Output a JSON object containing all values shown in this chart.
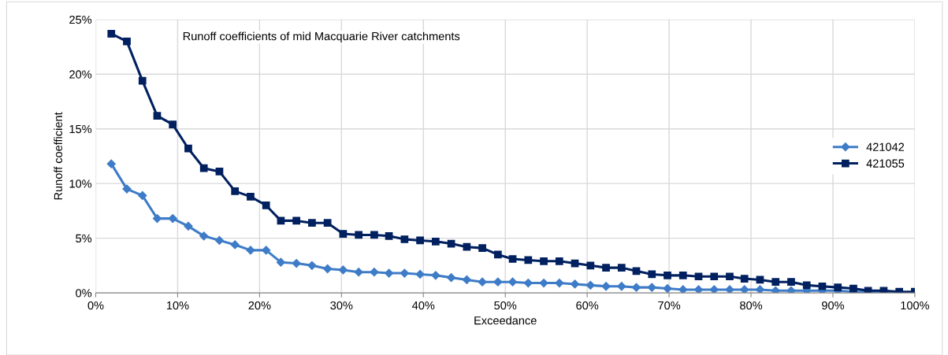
{
  "chart_data": {
    "type": "line",
    "title": "Runoff coefficients of mid Macquarie River catchments",
    "xlabel": "Exceedance",
    "ylabel": "Runoff coefficient",
    "x": [
      1.9,
      3.8,
      5.7,
      7.5,
      9.4,
      11.3,
      13.2,
      15.1,
      17.0,
      18.9,
      20.8,
      22.6,
      24.5,
      26.4,
      28.3,
      30.2,
      32.1,
      34.0,
      35.8,
      37.7,
      39.6,
      41.5,
      43.4,
      45.3,
      47.2,
      49.1,
      50.9,
      52.8,
      54.7,
      56.6,
      58.5,
      60.4,
      62.3,
      64.2,
      66.0,
      67.9,
      69.8,
      71.7,
      73.6,
      75.5,
      77.4,
      79.2,
      81.1,
      83.0,
      84.9,
      86.8,
      88.7,
      90.6,
      92.5,
      94.3,
      96.2,
      98.1,
      100.0
    ],
    "series": [
      {
        "name": "421042",
        "color": "#3e7cc8",
        "marker": "diamond",
        "values": [
          11.8,
          9.5,
          8.9,
          6.8,
          6.8,
          6.1,
          5.2,
          4.8,
          4.4,
          3.9,
          3.9,
          2.8,
          2.7,
          2.5,
          2.2,
          2.1,
          1.9,
          1.9,
          1.8,
          1.8,
          1.7,
          1.6,
          1.4,
          1.2,
          1.0,
          1.0,
          1.0,
          0.9,
          0.9,
          0.9,
          0.8,
          0.7,
          0.6,
          0.6,
          0.5,
          0.5,
          0.4,
          0.3,
          0.3,
          0.3,
          0.3,
          0.3,
          0.3,
          0.2,
          0.2,
          0.2,
          0.2,
          0.2,
          0.1,
          0.1,
          0.1,
          0.0,
          0.0
        ]
      },
      {
        "name": "421055",
        "color": "#002060",
        "marker": "square",
        "values": [
          23.7,
          23.0,
          19.4,
          16.2,
          15.4,
          13.2,
          11.4,
          11.1,
          9.3,
          8.8,
          8.0,
          6.6,
          6.6,
          6.4,
          6.4,
          5.4,
          5.3,
          5.3,
          5.2,
          4.9,
          4.8,
          4.7,
          4.5,
          4.2,
          4.1,
          3.5,
          3.1,
          3.0,
          2.9,
          2.9,
          2.7,
          2.5,
          2.3,
          2.3,
          2.0,
          1.7,
          1.6,
          1.6,
          1.5,
          1.5,
          1.5,
          1.3,
          1.2,
          1.0,
          1.0,
          0.7,
          0.6,
          0.5,
          0.4,
          0.2,
          0.2,
          0.1,
          0.1
        ]
      }
    ],
    "xlim": [
      0,
      100
    ],
    "xticks": [
      {
        "value": 0,
        "label": "0%"
      },
      {
        "value": 10,
        "label": "10%"
      },
      {
        "value": 20,
        "label": "20%"
      },
      {
        "value": 30,
        "label": "30%"
      },
      {
        "value": 40,
        "label": "40%"
      },
      {
        "value": 50,
        "label": "50%"
      },
      {
        "value": 60,
        "label": "60%"
      },
      {
        "value": 70,
        "label": "70%"
      },
      {
        "value": 80,
        "label": "80%"
      },
      {
        "value": 90,
        "label": "90%"
      },
      {
        "value": 100,
        "label": "100%"
      }
    ],
    "ylim": [
      0,
      25
    ],
    "yticks": [
      {
        "value": 0,
        "label": "0%"
      },
      {
        "value": 5,
        "label": "5%"
      },
      {
        "value": 10,
        "label": "10%"
      },
      {
        "value": 15,
        "label": "15%"
      },
      {
        "value": 20,
        "label": "20%"
      },
      {
        "value": 25,
        "label": "25%"
      }
    ],
    "grid": true,
    "legend": "right",
    "line_style": "solid"
  }
}
